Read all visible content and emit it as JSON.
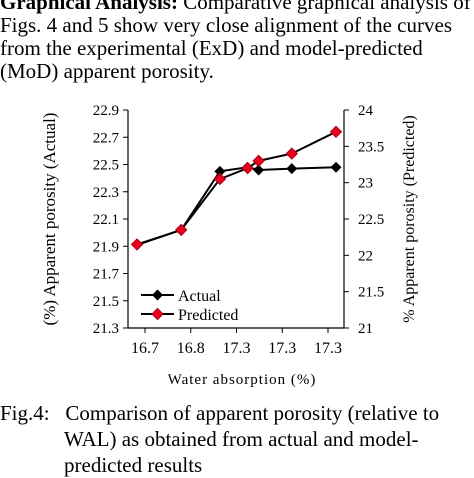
{
  "paragraph": {
    "line1_bold": "Graphical Analysis:",
    "line1_rest": " Comparative graphical analysis of",
    "line2": "Figs. 4 and 5 show very close alignment of the curves",
    "line3": "from the experimental (ExD) and model-predicted",
    "line4": "(MoD) apparent porosity."
  },
  "caption": {
    "label": "Fig.4:",
    "line1": "Comparison of apparent porosity (relative to",
    "line2": "WAL) as obtained from actual and model-",
    "line3": "predicted results"
  },
  "chart_data": {
    "type": "line",
    "xlabel": "Water absorption (%)",
    "ylabel": "(%) Apparent porosity (Actual)",
    "y2label": "% Apparent porosity (Predicted)",
    "categories": [
      "16.7",
      "16.8",
      "17.3",
      "17.3",
      "17.3"
    ],
    "x": [
      16.66,
      16.74,
      16.81,
      16.86,
      16.88,
      16.94,
      17.02
    ],
    "ylim": [
      21.3,
      22.9
    ],
    "y2lim": [
      21,
      24
    ],
    "yticks": [
      "22.9",
      "22.7",
      "22.5",
      "22.3",
      "22.1",
      "21.9",
      "21.7",
      "21.5",
      "21.3"
    ],
    "y2ticks": [
      "24",
      "23.5",
      "23",
      "22.5",
      "22",
      "21.5",
      "21"
    ],
    "series": [
      {
        "name": "Actual",
        "axis": "left",
        "color": "#000000",
        "marker": "diamond",
        "values": [
          21.91,
          22.02,
          22.45,
          22.48,
          22.46,
          22.47,
          22.48
        ]
      },
      {
        "name": "Predicted",
        "axis": "right",
        "color": "#e8001c",
        "marker": "diamond",
        "values": [
          22.15,
          22.35,
          23.05,
          23.2,
          23.3,
          23.4,
          23.7
        ]
      }
    ],
    "legend": {
      "placement": "bottom-left",
      "entries": [
        "Actual",
        "Predicted"
      ]
    },
    "grid": false
  }
}
